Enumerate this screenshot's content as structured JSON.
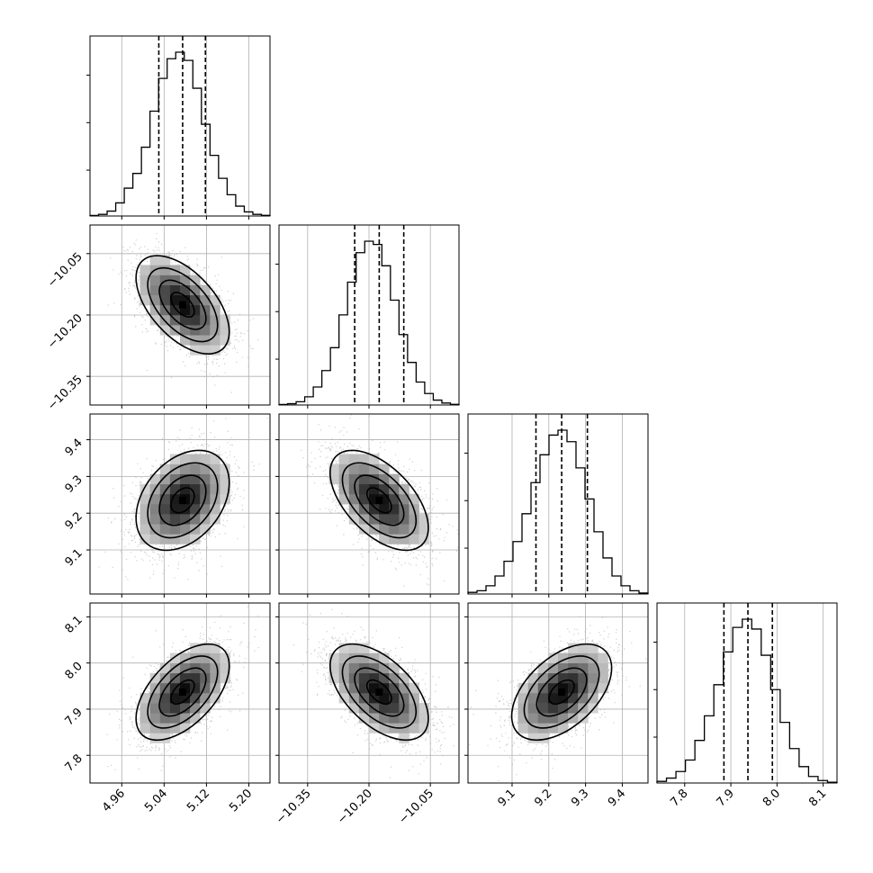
{
  "chart_data": {
    "type": "corner",
    "title": "",
    "parameters": [
      {
        "label": "",
        "range": [
          4.9,
          5.24
        ],
        "ticks": [
          4.96,
          5.04,
          5.12,
          5.2
        ],
        "tick_labels": [
          "4.96",
          "5.04",
          "5.12",
          "5.20"
        ],
        "quantiles": [
          5.03,
          5.075,
          5.118
        ],
        "mean": 5.075,
        "std": 0.044,
        "histogram": [
          0.003,
          0.01,
          0.03,
          0.08,
          0.17,
          0.26,
          0.42,
          0.64,
          0.84,
          0.96,
          1.0,
          0.95,
          0.78,
          0.56,
          0.37,
          0.23,
          0.13,
          0.06,
          0.025,
          0.01,
          0.004
        ]
      },
      {
        "label": "",
        "range": [
          -10.42,
          -9.98
        ],
        "ticks": [
          -10.35,
          -10.2,
          -10.05
        ],
        "tick_labels": [
          "−10.35",
          "−10.20",
          "−10.05"
        ],
        "quantiles": [
          -10.235,
          -10.175,
          -10.115
        ],
        "mean": -10.175,
        "std": 0.06,
        "histogram": [
          0.003,
          0.008,
          0.02,
          0.05,
          0.11,
          0.21,
          0.35,
          0.55,
          0.75,
          0.93,
          1.0,
          0.98,
          0.85,
          0.64,
          0.43,
          0.26,
          0.14,
          0.07,
          0.03,
          0.012,
          0.004
        ]
      },
      {
        "label": "",
        "range": [
          8.98,
          9.47
        ],
        "ticks": [
          9.1,
          9.2,
          9.3,
          9.4
        ],
        "tick_labels": [
          "9.1",
          "9.2",
          "9.3",
          "9.4"
        ],
        "quantiles": [
          9.165,
          9.235,
          9.305
        ],
        "mean": 9.235,
        "std": 0.068,
        "histogram": [
          0.01,
          0.02,
          0.05,
          0.11,
          0.2,
          0.32,
          0.49,
          0.68,
          0.85,
          0.97,
          1.0,
          0.93,
          0.77,
          0.58,
          0.38,
          0.22,
          0.11,
          0.05,
          0.02,
          0.006
        ]
      },
      {
        "label": "",
        "range": [
          7.74,
          8.13
        ],
        "ticks": [
          7.8,
          7.9,
          8.0,
          8.1
        ],
        "tick_labels": [
          "7.8",
          "7.9",
          "8.0",
          "8.1"
        ],
        "quantiles": [
          7.885,
          7.937,
          7.99
        ],
        "mean": 7.937,
        "std": 0.052,
        "histogram": [
          0.01,
          0.03,
          0.07,
          0.14,
          0.26,
          0.41,
          0.6,
          0.8,
          0.95,
          1.0,
          0.94,
          0.78,
          0.57,
          0.37,
          0.21,
          0.1,
          0.04,
          0.015,
          0.005
        ]
      }
    ],
    "correlations": [
      [
        1.0,
        -0.55,
        0.35,
        0.55
      ],
      [
        -0.55,
        1.0,
        -0.55,
        -0.55
      ],
      [
        0.35,
        -0.55,
        1.0,
        0.5
      ],
      [
        0.55,
        -0.55,
        0.5,
        1.0
      ]
    ],
    "contour_levels_sigma": [
      0.5,
      1.0,
      1.5,
      2.0
    ],
    "show_grid": true,
    "show_density": true,
    "show_samples": true
  }
}
